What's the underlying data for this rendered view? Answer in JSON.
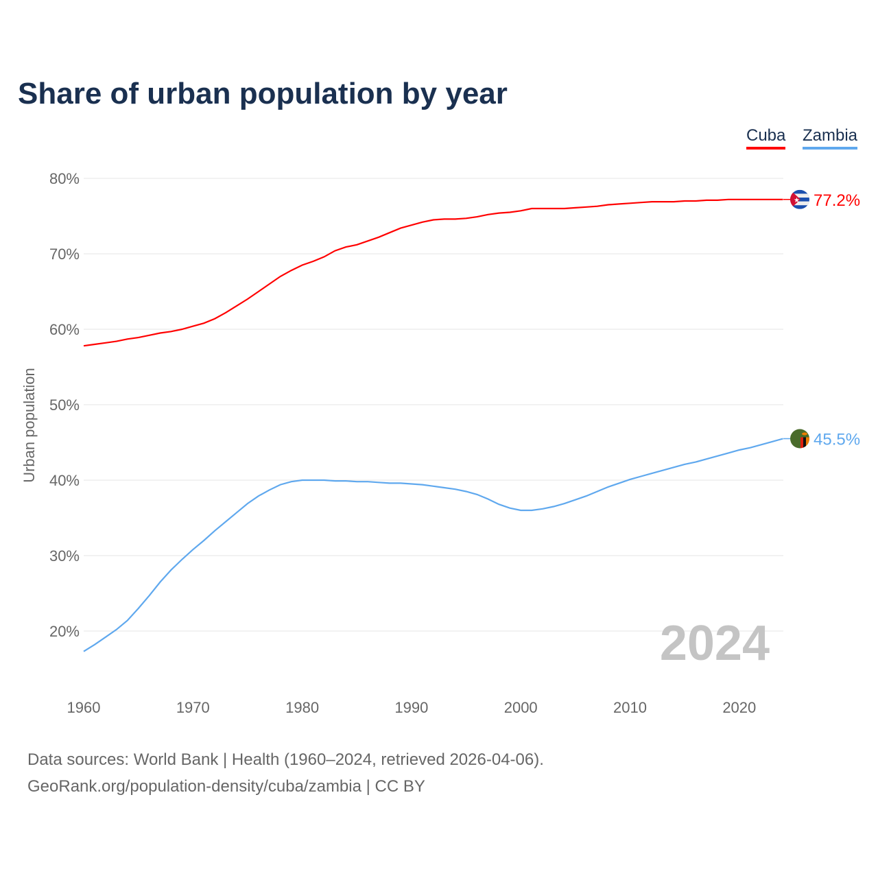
{
  "chart_data": {
    "type": "line",
    "title": "Share of urban population by year",
    "ylabel": "Urban population",
    "xlabel": "",
    "ylim": [
      13,
      82
    ],
    "xlim": [
      1960,
      2024
    ],
    "yticks": [
      20,
      30,
      40,
      50,
      60,
      70,
      80
    ],
    "ytick_labels": [
      "20%",
      "30%",
      "40%",
      "50%",
      "60%",
      "70%",
      "80%"
    ],
    "xticks": [
      1960,
      1970,
      1980,
      1990,
      2000,
      2010,
      2020
    ],
    "xtick_labels": [
      "1960",
      "1970",
      "1980",
      "1990",
      "2000",
      "2010",
      "2020"
    ],
    "year_watermark": "2024",
    "legend_position": "top-right",
    "x_start": 1960,
    "series": [
      {
        "name": "Cuba",
        "color": "#ff0000",
        "end_label": "77.2%",
        "flag": "cuba-flag",
        "values": [
          57.8,
          58.0,
          58.2,
          58.4,
          58.7,
          58.9,
          59.2,
          59.5,
          59.7,
          60.0,
          60.4,
          60.8,
          61.4,
          62.2,
          63.1,
          64.0,
          65.0,
          66.0,
          67.0,
          67.8,
          68.5,
          69.0,
          69.6,
          70.4,
          70.9,
          71.2,
          71.7,
          72.2,
          72.8,
          73.4,
          73.8,
          74.2,
          74.5,
          74.6,
          74.6,
          74.7,
          74.9,
          75.2,
          75.4,
          75.5,
          75.7,
          76.0,
          76.0,
          76.0,
          76.0,
          76.1,
          76.2,
          76.3,
          76.5,
          76.6,
          76.7,
          76.8,
          76.9,
          76.9,
          76.9,
          77.0,
          77.0,
          77.1,
          77.1,
          77.2,
          77.2,
          77.2,
          77.2,
          77.2,
          77.2
        ]
      },
      {
        "name": "Zambia",
        "color": "#5fa8ee",
        "end_label": "45.5%",
        "flag": "zambia-flag",
        "values": [
          17.3,
          18.2,
          19.2,
          20.2,
          21.4,
          23.0,
          24.7,
          26.5,
          28.1,
          29.5,
          30.8,
          32.0,
          33.3,
          34.5,
          35.7,
          36.9,
          37.9,
          38.7,
          39.4,
          39.8,
          40.0,
          40.0,
          40.0,
          39.9,
          39.9,
          39.8,
          39.8,
          39.7,
          39.6,
          39.6,
          39.5,
          39.4,
          39.2,
          39.0,
          38.8,
          38.5,
          38.1,
          37.5,
          36.8,
          36.3,
          36.0,
          36.0,
          36.2,
          36.5,
          36.9,
          37.4,
          37.9,
          38.5,
          39.1,
          39.6,
          40.1,
          40.5,
          40.9,
          41.3,
          41.7,
          42.1,
          42.4,
          42.8,
          43.2,
          43.6,
          44.0,
          44.3,
          44.7,
          45.1,
          45.5
        ]
      }
    ]
  },
  "footer": {
    "line1": "Data sources: World Bank | Health (1960–2024, retrieved 2026-04-06).",
    "line2": "GeoRank.org/population-density/cuba/zambia | CC BY"
  }
}
